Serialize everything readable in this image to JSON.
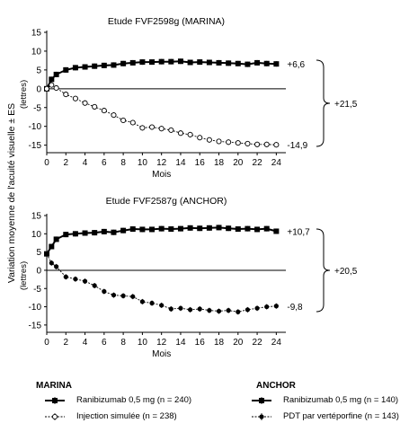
{
  "figure": {
    "ylabel": "Variation moyenne de l'acuité visuelle ± ES",
    "unit": "(lettres)"
  },
  "chart_data": [
    {
      "type": "line",
      "title": "Etude FVF2598g (MARINA)",
      "xlabel": "Mois",
      "ylabel": "Variation moyenne de l'acuité visuelle ± ES (lettres)",
      "xlim": [
        0,
        25
      ],
      "ylim": [
        -17,
        15
      ],
      "xticks": [
        0,
        2,
        4,
        6,
        8,
        10,
        12,
        14,
        16,
        18,
        20,
        22,
        24
      ],
      "yticks": [
        15,
        10,
        5,
        0,
        -5,
        -10,
        -15
      ],
      "grid": false,
      "series": [
        {
          "name": "Ranibizumab 0,5 mg (n = 240)",
          "marker": "filled-square",
          "x": [
            0,
            0.5,
            1,
            2,
            3,
            4,
            5,
            6,
            7,
            8,
            9,
            10,
            11,
            12,
            13,
            14,
            15,
            16,
            17,
            18,
            19,
            20,
            21,
            22,
            23,
            24
          ],
          "y": [
            0,
            2.5,
            3.8,
            5.0,
            5.6,
            5.8,
            6.0,
            6.2,
            6.3,
            6.7,
            6.9,
            7.1,
            7.1,
            7.2,
            7.2,
            7.3,
            7.0,
            7.1,
            7.0,
            6.9,
            6.8,
            6.7,
            6.5,
            6.9,
            6.7,
            6.6
          ],
          "end_label": "+6,6"
        },
        {
          "name": "Injection simulée (n = 238)",
          "marker": "open-circle",
          "x": [
            0,
            0.5,
            1,
            2,
            3,
            4,
            5,
            6,
            7,
            8,
            9,
            10,
            11,
            12,
            13,
            14,
            15,
            16,
            17,
            18,
            19,
            20,
            21,
            22,
            23,
            24
          ],
          "y": [
            0,
            1.0,
            0.2,
            -1.5,
            -2.6,
            -3.8,
            -4.8,
            -5.8,
            -7.0,
            -8.4,
            -9.0,
            -10.4,
            -10.2,
            -10.6,
            -11.0,
            -11.8,
            -12.2,
            -13.0,
            -13.6,
            -14.0,
            -14.2,
            -14.4,
            -14.6,
            -14.8,
            -14.8,
            -14.9
          ],
          "end_label": "-14,9"
        }
      ],
      "annotation": "+21,5"
    },
    {
      "type": "line",
      "title": "Etude FVF2587g (ANCHOR)",
      "xlabel": "Mois",
      "ylabel": "Variation moyenne de l'acuité visuelle ± ES (lettres)",
      "xlim": [
        0,
        25
      ],
      "ylim": [
        -17,
        15
      ],
      "xticks": [
        0,
        2,
        4,
        6,
        8,
        10,
        12,
        14,
        16,
        18,
        20,
        22,
        24
      ],
      "yticks": [
        15,
        10,
        5,
        0,
        -5,
        -10,
        -15
      ],
      "grid": false,
      "series": [
        {
          "name": "Ranibizumab 0,5 mg (n = 140)",
          "marker": "filled-square",
          "x": [
            0,
            0.5,
            1,
            2,
            3,
            4,
            5,
            6,
            7,
            8,
            9,
            10,
            11,
            12,
            13,
            14,
            15,
            16,
            17,
            18,
            19,
            20,
            21,
            22,
            23,
            24
          ],
          "y": [
            4.5,
            6.5,
            8.5,
            9.8,
            10.0,
            10.2,
            10.3,
            10.6,
            10.4,
            10.9,
            11.3,
            11.2,
            11.2,
            11.4,
            11.3,
            11.4,
            11.6,
            11.5,
            11.6,
            11.7,
            11.5,
            11.3,
            11.4,
            11.2,
            11.4,
            10.7
          ],
          "end_label": "+10,7"
        },
        {
          "name": "PDT par vertéporfine (n = 143)",
          "marker": "filled-circle",
          "x": [
            0,
            0.5,
            1,
            2,
            3,
            4,
            5,
            6,
            7,
            8,
            9,
            10,
            11,
            12,
            13,
            14,
            15,
            16,
            17,
            18,
            19,
            20,
            21,
            22,
            23,
            24
          ],
          "y": [
            4.5,
            2.0,
            1.0,
            -1.8,
            -2.4,
            -3.0,
            -4.2,
            -5.8,
            -6.8,
            -7.0,
            -7.2,
            -8.6,
            -9.0,
            -9.6,
            -10.6,
            -10.4,
            -10.8,
            -10.6,
            -11.0,
            -11.2,
            -11.0,
            -11.4,
            -10.8,
            -10.4,
            -10.0,
            -9.8
          ],
          "end_label": "-9,8"
        }
      ],
      "annotation": "+20,5"
    }
  ],
  "legend": {
    "groups": [
      {
        "title": "MARINA",
        "items": [
          "Ranibizumab 0,5 mg (n = 240)",
          "Injection simulée (n = 238)"
        ]
      },
      {
        "title": "ANCHOR",
        "items": [
          "Ranibizumab 0,5 mg (n = 140)",
          "PDT par vertéporfine (n = 143)"
        ]
      }
    ]
  }
}
